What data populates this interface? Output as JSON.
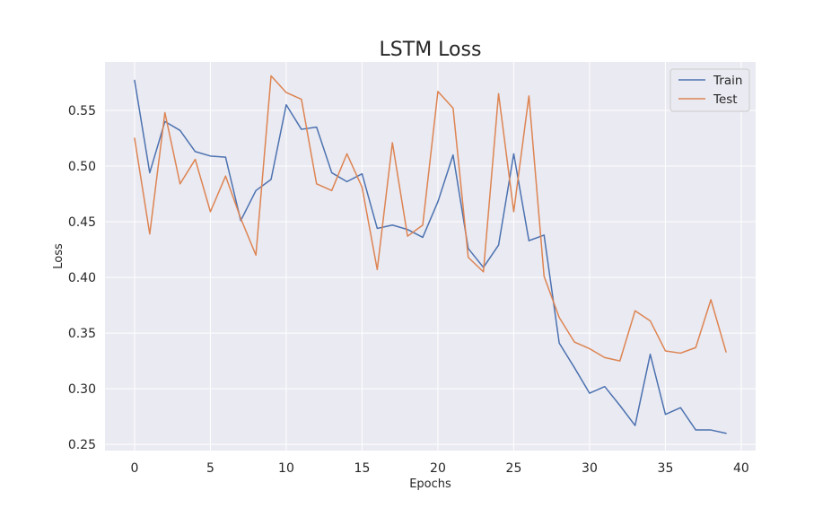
{
  "chart_data": {
    "type": "line",
    "title": "LSTM Loss",
    "xlabel": "Epochs",
    "ylabel": "Loss",
    "xlim": [
      -1.95,
      40.95
    ],
    "ylim": [
      0.2445,
      0.5935
    ],
    "x_ticks": [
      0,
      5,
      10,
      15,
      20,
      25,
      30,
      35,
      40
    ],
    "y_ticks": [
      0.25,
      0.3,
      0.35,
      0.4,
      0.45,
      0.5,
      0.55
    ],
    "y_tick_labels": [
      "0.25",
      "0.30",
      "0.35",
      "0.40",
      "0.45",
      "0.50",
      "0.55"
    ],
    "grid": true,
    "legend_position": "top-right",
    "x": [
      0,
      1,
      2,
      3,
      4,
      5,
      6,
      7,
      8,
      9,
      10,
      11,
      12,
      13,
      14,
      15,
      16,
      17,
      18,
      19,
      20,
      21,
      22,
      23,
      24,
      25,
      26,
      27,
      28,
      29,
      30,
      31,
      32,
      33,
      34,
      35,
      36,
      37,
      38,
      39
    ],
    "series": [
      {
        "name": "Train",
        "color": "#4c72b0",
        "values": [
          0.577,
          0.494,
          0.54,
          0.532,
          0.513,
          0.509,
          0.508,
          0.451,
          0.478,
          0.488,
          0.555,
          0.533,
          0.535,
          0.494,
          0.486,
          0.493,
          0.444,
          0.447,
          0.443,
          0.436,
          0.468,
          0.51,
          0.426,
          0.409,
          0.429,
          0.511,
          0.433,
          0.438,
          0.341,
          0.319,
          0.296,
          0.302,
          0.285,
          0.267,
          0.331,
          0.277,
          0.283,
          0.263,
          0.263,
          0.26
        ]
      },
      {
        "name": "Test",
        "color": "#dd8452",
        "values": [
          0.525,
          0.439,
          0.548,
          0.484,
          0.506,
          0.459,
          0.491,
          0.453,
          0.42,
          0.581,
          0.566,
          0.56,
          0.484,
          0.478,
          0.511,
          0.481,
          0.407,
          0.521,
          0.437,
          0.447,
          0.567,
          0.552,
          0.418,
          0.405,
          0.565,
          0.459,
          0.563,
          0.401,
          0.364,
          0.342,
          0.336,
          0.328,
          0.325,
          0.37,
          0.361,
          0.334,
          0.332,
          0.337,
          0.38,
          0.333
        ]
      }
    ]
  }
}
